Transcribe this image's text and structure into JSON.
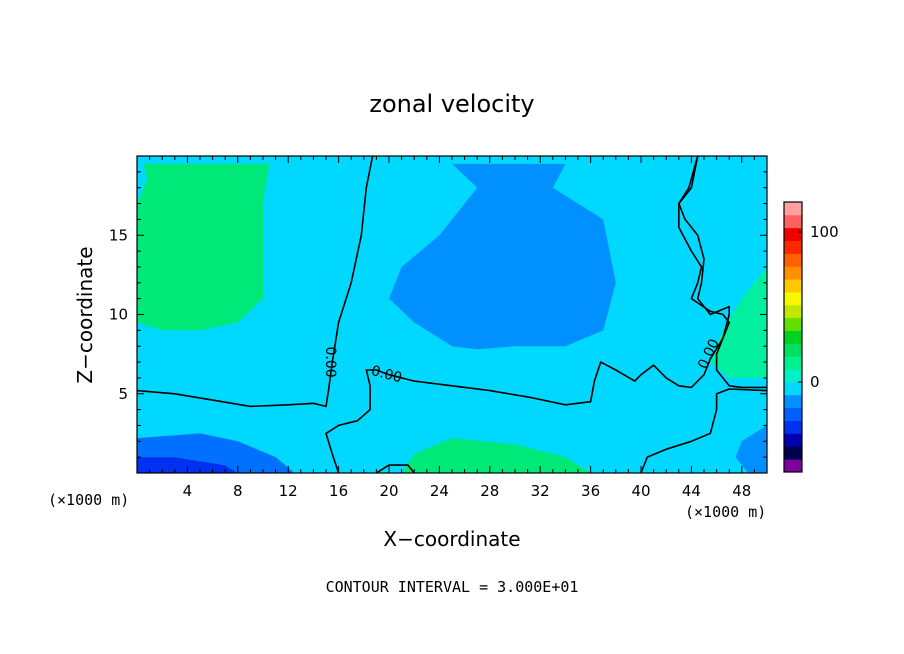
{
  "chart_data": {
    "type": "heatmap",
    "title": "zonal velocity",
    "xlabel": "X−coordinate",
    "ylabel": "Z−coordinate",
    "x_unit_label_left": "(×1000 m)",
    "x_unit_label_right": "(×1000 m)",
    "xlim": [
      0,
      50
    ],
    "ylim": [
      0,
      20
    ],
    "xticks": [
      4,
      8,
      12,
      16,
      20,
      24,
      28,
      32,
      36,
      40,
      44,
      48
    ],
    "yticks": [
      5,
      10,
      15
    ],
    "footer": "CONTOUR INTERVAL = 3.000E+01",
    "contour_label": "0.00",
    "colorbar": {
      "range": [
        -60,
        120
      ],
      "tick_labels": [
        {
          "value": 0,
          "label": "0"
        },
        {
          "value": 100,
          "label": "100"
        }
      ],
      "colors": [
        "#7f00a0",
        "#00004c",
        "#0000b0",
        "#0030f0",
        "#0060ff",
        "#0090ff",
        "#00d8ff",
        "#00f0c8",
        "#00f090",
        "#00e060",
        "#00d020",
        "#60e000",
        "#c0e800",
        "#f8f800",
        "#ffc800",
        "#ff9000",
        "#ff6000",
        "#ff2800",
        "#f00000",
        "#ff6060",
        "#ffa0a0"
      ]
    },
    "regions": [
      {
        "name": "surface-strong-negative",
        "value": -45,
        "color": "#0030f0",
        "points": [
          [
            0,
            0
          ],
          [
            8,
            0
          ],
          [
            7,
            0.5
          ],
          [
            3,
            1
          ],
          [
            0,
            1
          ]
        ]
      },
      {
        "name": "lower-negative-band",
        "value": -20,
        "color": "#0070ff",
        "points": [
          [
            0,
            1
          ],
          [
            3,
            1
          ],
          [
            7,
            0.5
          ],
          [
            8,
            0
          ],
          [
            12.5,
            0
          ],
          [
            11,
            1
          ],
          [
            8,
            2
          ],
          [
            5,
            2.5
          ],
          [
            0,
            2.2
          ]
        ]
      },
      {
        "name": "upper-negative-core",
        "value": -20,
        "color": "#0090ff",
        "points": [
          [
            25,
            19.5
          ],
          [
            34,
            19.5
          ],
          [
            33,
            18
          ],
          [
            37,
            16
          ],
          [
            38,
            12
          ],
          [
            37,
            9
          ],
          [
            34,
            8
          ],
          [
            30,
            8
          ],
          [
            27,
            7.8
          ],
          [
            25,
            8
          ],
          [
            22,
            9.5
          ],
          [
            20,
            11
          ],
          [
            21,
            13
          ],
          [
            24,
            15
          ],
          [
            27,
            18
          ]
        ]
      },
      {
        "name": "right-bottom-negative",
        "value": -15,
        "color": "#0090ff",
        "points": [
          [
            48.5,
            0
          ],
          [
            50,
            0
          ],
          [
            50,
            3
          ],
          [
            48,
            2
          ],
          [
            47.5,
            1
          ]
        ]
      },
      {
        "name": "upper-left-positive",
        "value": 20,
        "color": "#00e878",
        "points": [
          [
            0.5,
            19.5
          ],
          [
            10.5,
            19.5
          ],
          [
            10,
            17
          ],
          [
            10,
            11
          ],
          [
            8,
            9.5
          ],
          [
            5,
            9
          ],
          [
            2,
            9
          ],
          [
            0,
            9.5
          ],
          [
            0,
            17
          ],
          [
            0.8,
            18.5
          ]
        ]
      },
      {
        "name": "right-mid-positive",
        "value": 12,
        "color": "#00f0a0",
        "points": [
          [
            50,
            13
          ],
          [
            48,
            11
          ],
          [
            46.5,
            9
          ],
          [
            45.5,
            7
          ],
          [
            47,
            6
          ],
          [
            50,
            6
          ]
        ]
      },
      {
        "name": "bottom-middle-positive",
        "value": 20,
        "color": "#00e878",
        "points": [
          [
            21,
            0
          ],
          [
            36,
            0
          ],
          [
            34,
            1
          ],
          [
            30,
            1.8
          ],
          [
            25,
            2.2
          ],
          [
            22,
            1.2
          ]
        ]
      }
    ],
    "contours": [
      {
        "name": "zero-contour-main",
        "points": [
          [
            0,
            5.2
          ],
          [
            3,
            5
          ],
          [
            6,
            4.6
          ],
          [
            9,
            4.2
          ],
          [
            12,
            4.3
          ],
          [
            14,
            4.4
          ],
          [
            15,
            4.2
          ],
          [
            15.2,
            5.2
          ],
          [
            15.5,
            7
          ],
          [
            16,
            9.5
          ],
          [
            17,
            12
          ],
          [
            17.8,
            15
          ],
          [
            18.2,
            18
          ],
          [
            18.7,
            20
          ]
        ]
      },
      {
        "name": "zero-contour-lower",
        "points": [
          [
            16,
            0
          ],
          [
            15.5,
            1.2
          ],
          [
            15,
            2.5
          ],
          [
            16,
            3
          ],
          [
            17.5,
            3.3
          ],
          [
            18.5,
            4
          ],
          [
            18.5,
            5.5
          ],
          [
            18.2,
            6.5
          ],
          [
            19,
            6.5
          ],
          [
            20,
            6.2
          ],
          [
            22,
            5.8
          ],
          [
            25,
            5.5
          ],
          [
            28,
            5.2
          ],
          [
            31,
            4.8
          ],
          [
            34,
            4.3
          ],
          [
            36,
            4.5
          ],
          [
            36.3,
            5.8
          ],
          [
            36.8,
            7
          ],
          [
            38,
            6.5
          ],
          [
            39.5,
            5.8
          ],
          [
            40,
            6.2
          ],
          [
            41,
            6.8
          ],
          [
            42,
            6
          ],
          [
            43,
            5.5
          ],
          [
            44,
            5.4
          ],
          [
            45,
            6.2
          ],
          [
            45.5,
            7.2
          ],
          [
            46.5,
            8.5
          ],
          [
            47,
            10
          ],
          [
            47,
            10.5
          ],
          [
            45.5,
            10
          ],
          [
            44.5,
            11
          ],
          [
            44.8,
            12
          ],
          [
            45,
            13.5
          ],
          [
            44.5,
            15
          ],
          [
            43.5,
            16
          ],
          [
            43,
            17
          ],
          [
            43.8,
            18
          ],
          [
            44.5,
            20
          ]
        ]
      },
      {
        "name": "zero-contour-right-upper",
        "points": [
          [
            44.5,
            20
          ],
          [
            44,
            18
          ],
          [
            43,
            17
          ],
          [
            43,
            15.5
          ],
          [
            44,
            14
          ],
          [
            44.8,
            13
          ],
          [
            44.5,
            12
          ],
          [
            44,
            11
          ],
          [
            45.5,
            10.2
          ],
          [
            46.5,
            10
          ],
          [
            47,
            9.5
          ],
          [
            46.5,
            8.5
          ],
          [
            46,
            7.5
          ],
          [
            46,
            6.5
          ],
          [
            47,
            5.5
          ],
          [
            48,
            5.4
          ],
          [
            50,
            5.4
          ]
        ]
      },
      {
        "name": "zero-contour-right-bottom",
        "points": [
          [
            40,
            0
          ],
          [
            40.5,
            1
          ],
          [
            42,
            1.5
          ],
          [
            44,
            2
          ],
          [
            45.5,
            2.5
          ],
          [
            46,
            4
          ],
          [
            46,
            5
          ],
          [
            47,
            5.3
          ],
          [
            50,
            5.2
          ]
        ]
      },
      {
        "name": "zero-contour-bottom-loop",
        "points": [
          [
            19,
            0
          ],
          [
            20,
            0.5
          ],
          [
            21.5,
            0.5
          ],
          [
            22,
            0
          ]
        ]
      }
    ]
  }
}
